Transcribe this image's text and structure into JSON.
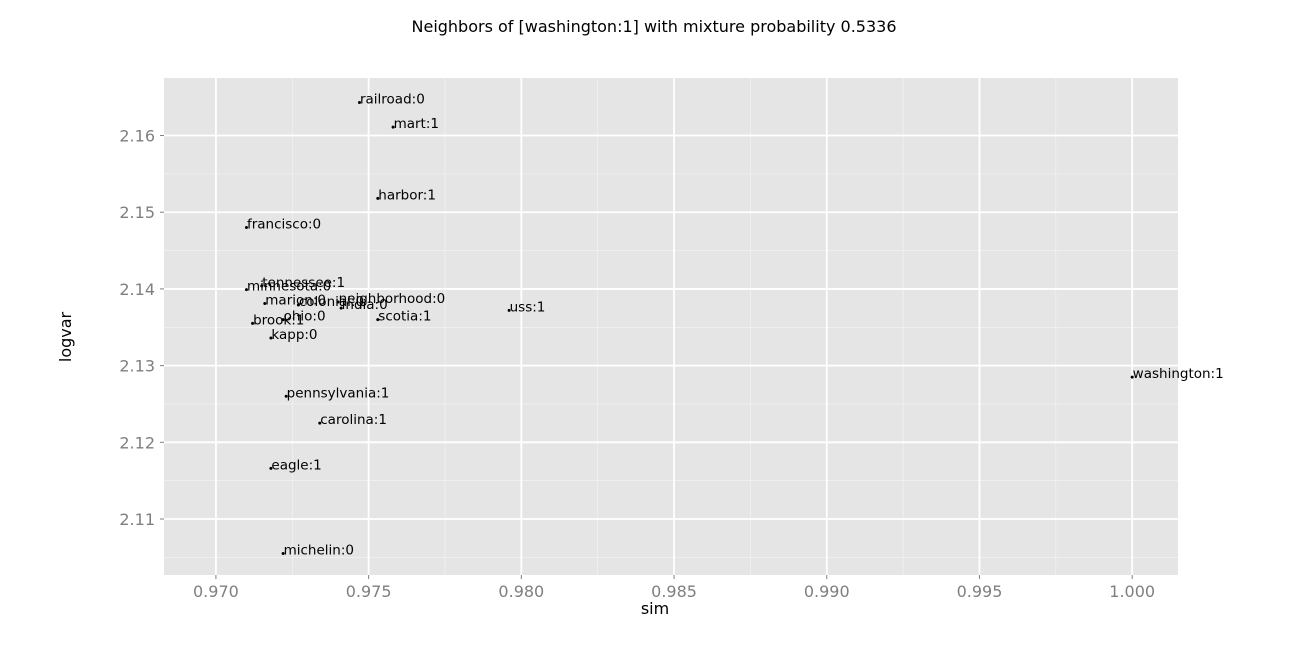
{
  "chart_data": {
    "type": "scatter",
    "title": "Neighbors of [washington:1] with mixture probability 0.5336",
    "xlabel": "sim",
    "ylabel": "logvar",
    "xlim": [
      0.9683,
      1.0015
    ],
    "ylim": [
      2.1027,
      2.1675
    ],
    "xticks": [
      "0.970",
      "0.975",
      "0.980",
      "0.985",
      "0.990",
      "0.995",
      "1.000"
    ],
    "xtick_values": [
      0.97,
      0.975,
      0.98,
      0.985,
      0.99,
      0.995,
      1.0
    ],
    "yticks": [
      "2.11",
      "2.12",
      "2.13",
      "2.14",
      "2.15",
      "2.16"
    ],
    "ytick_values": [
      2.11,
      2.12,
      2.13,
      2.14,
      2.15,
      2.16
    ],
    "grid": true,
    "panel_color": "#e5e5e5",
    "grid_color": "#ffffff",
    "point_color": "#000000",
    "points": [
      {
        "label": "railroad:0",
        "x": 0.9747,
        "y": 2.1643
      },
      {
        "label": "mart:1",
        "x": 0.9758,
        "y": 2.1611
      },
      {
        "label": "harbor:1",
        "x": 0.9753,
        "y": 2.1518
      },
      {
        "label": "francisco:0",
        "x": 0.971,
        "y": 2.148
      },
      {
        "label": "tennessee:1",
        "x": 0.9715,
        "y": 2.1404
      },
      {
        "label": "minnesota:0",
        "x": 0.971,
        "y": 2.1399
      },
      {
        "label": "marion:0",
        "x": 0.9716,
        "y": 2.1381
      },
      {
        "label": "colonial:0",
        "x": 0.9727,
        "y": 2.1379
      },
      {
        "label": "neighborhood:0",
        "x": 0.974,
        "y": 2.1383
      },
      {
        "label": "india:0",
        "x": 0.9741,
        "y": 2.1375
      },
      {
        "label": "uss:1",
        "x": 0.9796,
        "y": 2.1372
      },
      {
        "label": "ohio:0",
        "x": 0.9722,
        "y": 2.136
      },
      {
        "label": "scotia:1",
        "x": 0.9753,
        "y": 2.136
      },
      {
        "label": "brook:1",
        "x": 0.9712,
        "y": 2.1355
      },
      {
        "label": "kapp:0",
        "x": 0.9718,
        "y": 2.1336
      },
      {
        "label": "washington:1",
        "x": 1.0,
        "y": 2.1285
      },
      {
        "label": "pennsylvania:1",
        "x": 0.9723,
        "y": 2.126
      },
      {
        "label": "carolina:1",
        "x": 0.9734,
        "y": 2.1225
      },
      {
        "label": "eagle:1",
        "x": 0.9718,
        "y": 2.1166
      },
      {
        "label": "michelin:0",
        "x": 0.9722,
        "y": 2.1055
      }
    ]
  }
}
